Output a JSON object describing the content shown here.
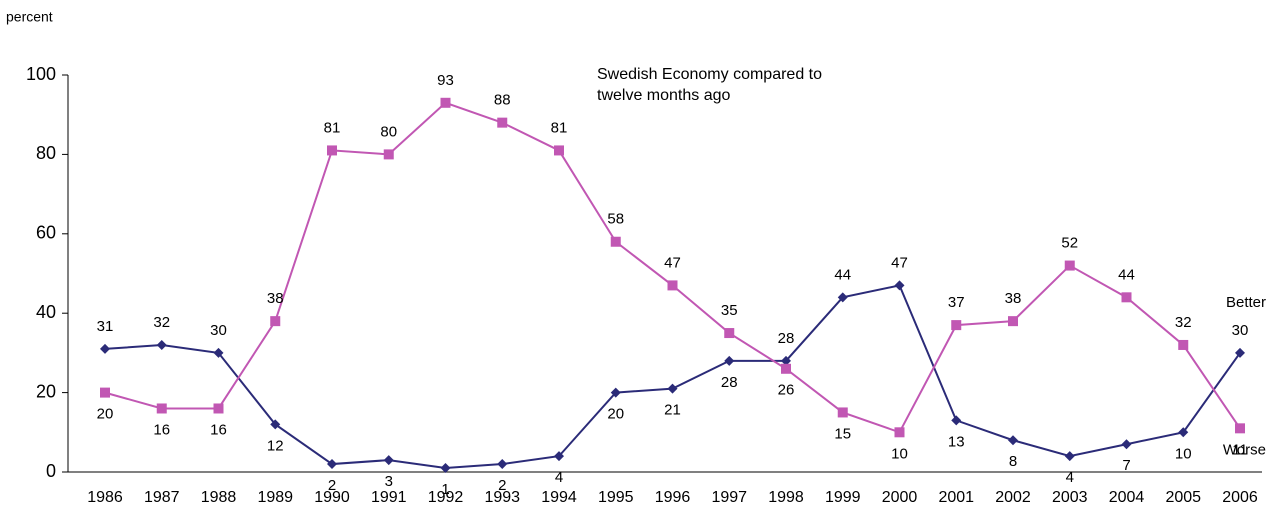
{
  "chart_data": {
    "type": "line",
    "title": "Swedish Economy compared to twelve months ago",
    "y_label": "percent",
    "categories": [
      "1986",
      "1987",
      "1988",
      "1989",
      "1990",
      "1991",
      "1992",
      "1993",
      "1994",
      "1995",
      "1996",
      "1997",
      "1998",
      "1999",
      "2000",
      "2001",
      "2002",
      "2003",
      "2004",
      "2005",
      "2006"
    ],
    "series": [
      {
        "name": "Better",
        "color": "#2b2b78",
        "marker": "diamond",
        "values": [
          31,
          32,
          30,
          12,
          2,
          3,
          1,
          2,
          4,
          20,
          21,
          28,
          28,
          44,
          47,
          13,
          8,
          4,
          7,
          10,
          30
        ]
      },
      {
        "name": "Worse",
        "color": "#c157b3",
        "marker": "square",
        "values": [
          20,
          16,
          16,
          38,
          81,
          80,
          93,
          88,
          81,
          58,
          47,
          35,
          26,
          15,
          10,
          37,
          38,
          52,
          44,
          32,
          11
        ]
      }
    ],
    "ylim": [
      0,
      100
    ],
    "yticks": [
      0,
      20,
      40,
      60,
      80,
      100
    ],
    "grid": false
  }
}
